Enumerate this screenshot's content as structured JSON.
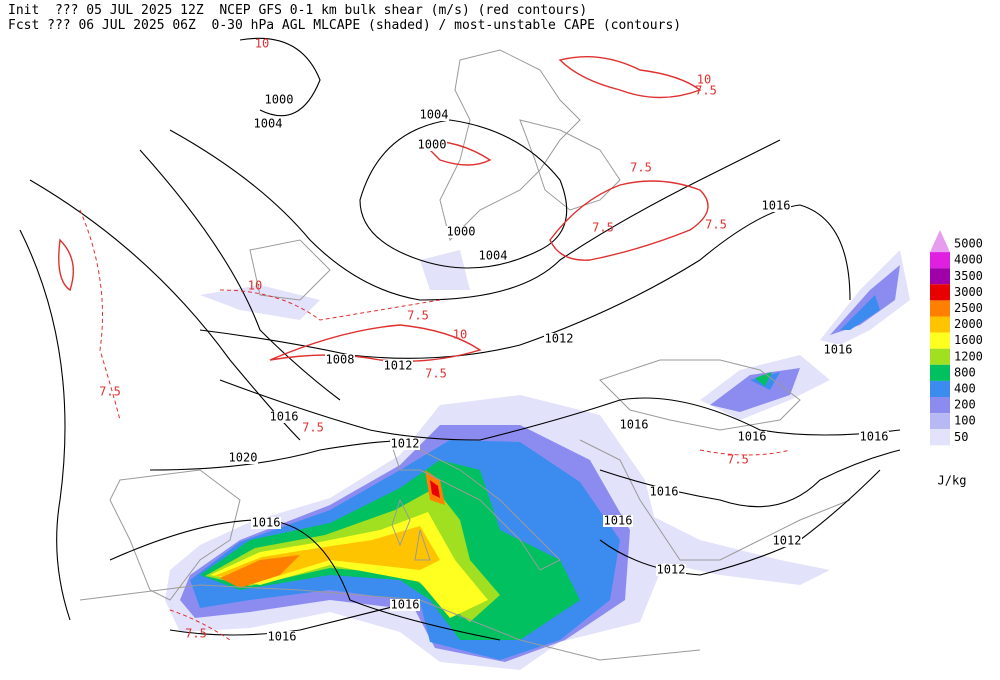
{
  "header": {
    "line1": "Init  ??? 05 JUL 2025 12Z  NCEP GFS 0-1 km bulk shear (m/s) (red contours)",
    "line2": "Fcst ??? 06 JUL 2025 06Z  0-30 hPa AGL MLCAPE (shaded) / most-unstable CAPE (contours)"
  },
  "isobar_labels": [
    "1000",
    "1004",
    "1004",
    "1000",
    "1000",
    "1004",
    "1016",
    "1012",
    "1016",
    "1008",
    "1012",
    "1016",
    "1012",
    "1016",
    "1016",
    "1016",
    "1020",
    "1016",
    "1016",
    "1016",
    "1012",
    "1012",
    "1016",
    "1016"
  ],
  "shear_labels": [
    "10",
    "10",
    "7.5",
    "7.5",
    "7.5",
    "7.5",
    "7.5",
    "7.5",
    "7.5",
    "7.5",
    "7.5",
    "7.5",
    "10",
    "10"
  ],
  "legend": {
    "levels": [
      5000,
      4000,
      3500,
      3000,
      2500,
      2000,
      1600,
      1200,
      800,
      400,
      200,
      100,
      50
    ],
    "colors": [
      "#e89cf0",
      "#e020e0",
      "#a000a8",
      "#e80000",
      "#ff8000",
      "#ffc400",
      "#ffff20",
      "#a0e020",
      "#00c060",
      "#3c8cf0",
      "#8c8cf0",
      "#b8b8f4",
      "#e2e2fa"
    ],
    "unit": "J/kg"
  }
}
